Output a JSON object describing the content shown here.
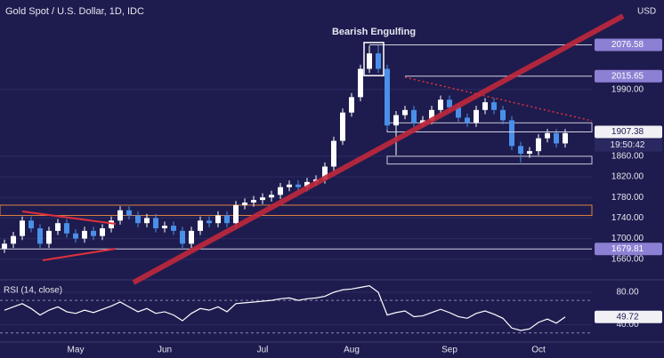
{
  "chart_data": [
    {
      "type": "candlestick",
      "title": "Gold Spot / U.S. Dollar, 1D, IDC",
      "currency": "USD",
      "annotation": "Bearish Engulfing",
      "categories": [
        null,
        null,
        null,
        null,
        null,
        null,
        null,
        null,
        "May",
        null,
        null,
        null,
        null,
        null,
        null,
        null,
        null,
        null,
        "Jun",
        null,
        null,
        null,
        null,
        null,
        null,
        null,
        null,
        null,
        null,
        "Jul",
        null,
        null,
        null,
        null,
        null,
        null,
        null,
        null,
        null,
        "Aug",
        null,
        null,
        null,
        null,
        null,
        null,
        null,
        null,
        null,
        null,
        "Sep",
        null,
        null,
        null,
        null,
        null,
        null,
        null,
        null,
        null,
        "Oct",
        null,
        null,
        null
      ],
      "open": [
        1680,
        1690,
        1705,
        1735,
        1720,
        1690,
        1715,
        1730,
        1710,
        1700,
        1715,
        1705,
        1720,
        1735,
        1755,
        1745,
        1730,
        1740,
        1720,
        1725,
        1715,
        1690,
        1715,
        1735,
        1730,
        1745,
        1730,
        1765,
        1770,
        1775,
        1780,
        1785,
        1800,
        1805,
        1800,
        1810,
        1815,
        1840,
        1890,
        1945,
        1975,
        2030,
        2060,
        2030,
        1920,
        1940,
        1950,
        1925,
        1930,
        1950,
        1970,
        1955,
        1935,
        1925,
        1950,
        1965,
        1950,
        1930,
        1880,
        1865,
        1870,
        1895,
        1905,
        1885
      ],
      "high": [
        1698,
        1713,
        1743,
        1743,
        1728,
        1723,
        1738,
        1738,
        1718,
        1723,
        1723,
        1728,
        1743,
        1763,
        1763,
        1753,
        1748,
        1748,
        1733,
        1733,
        1723,
        1723,
        1743,
        1743,
        1753,
        1753,
        1773,
        1778,
        1783,
        1788,
        1793,
        1808,
        1813,
        1813,
        1818,
        1823,
        1848,
        1898,
        1953,
        1983,
        2038,
        2075,
        2076,
        2038,
        1948,
        1958,
        1958,
        1938,
        1958,
        1978,
        1978,
        1963,
        1943,
        1958,
        1973,
        1973,
        1958,
        1938,
        1888,
        1878,
        1903,
        1913,
        1913,
        1913
      ],
      "low": [
        1672,
        1682,
        1697,
        1712,
        1682,
        1682,
        1707,
        1702,
        1692,
        1692,
        1697,
        1697,
        1712,
        1727,
        1737,
        1722,
        1722,
        1712,
        1712,
        1707,
        1682,
        1682,
        1707,
        1722,
        1722,
        1722,
        1722,
        1757,
        1762,
        1767,
        1772,
        1777,
        1792,
        1792,
        1792,
        1802,
        1807,
        1832,
        1882,
        1937,
        1967,
        2022,
        2022,
        1912,
        1862,
        1932,
        1917,
        1917,
        1922,
        1942,
        1947,
        1927,
        1917,
        1917,
        1942,
        1942,
        1922,
        1872,
        1848,
        1857,
        1862,
        1887,
        1877,
        1877
      ],
      "close": [
        1690,
        1705,
        1735,
        1720,
        1690,
        1715,
        1730,
        1710,
        1700,
        1715,
        1705,
        1720,
        1735,
        1755,
        1745,
        1730,
        1740,
        1720,
        1725,
        1715,
        1690,
        1715,
        1735,
        1730,
        1745,
        1730,
        1765,
        1770,
        1775,
        1780,
        1785,
        1800,
        1805,
        1800,
        1810,
        1815,
        1840,
        1890,
        1945,
        1975,
        2030,
        2060,
        2030,
        1920,
        1940,
        1950,
        1925,
        1930,
        1950,
        1970,
        1955,
        1935,
        1925,
        1950,
        1965,
        1950,
        1930,
        1880,
        1865,
        1870,
        1895,
        1905,
        1885,
        1905
      ],
      "up_color": "#ffffff",
      "down_color": "#4a8fe8",
      "ylim": [
        1625,
        2150
      ],
      "yticks": [
        {
          "value": 1660,
          "label": "1660.00"
        },
        {
          "value": 1700,
          "label": "1700.00"
        },
        {
          "value": 1740,
          "label": "1740.00"
        },
        {
          "value": 1780,
          "label": "1780.00"
        },
        {
          "value": 1820,
          "label": "1820.00"
        },
        {
          "value": 1860,
          "label": "1860.00"
        },
        {
          "value": 1990,
          "label": "1990.00"
        }
      ],
      "levels": [
        2076.58,
        2015.65,
        1907.38,
        1679.81
      ],
      "last_time": "19:50:42",
      "zones": [
        [
          1907.38,
          1925
        ],
        [
          1845,
          1860
        ],
        [
          1745,
          1765
        ]
      ],
      "grid": true
    },
    {
      "type": "line",
      "title": "RSI (14, close)",
      "color": "#ffffff",
      "values": [
        58,
        62,
        66,
        60,
        52,
        58,
        62,
        56,
        54,
        58,
        55,
        59,
        63,
        68,
        62,
        56,
        60,
        54,
        56,
        52,
        45,
        54,
        60,
        58,
        62,
        56,
        66,
        67,
        68,
        69,
        70,
        72,
        73,
        70,
        72,
        73,
        75,
        80,
        83,
        84,
        86,
        88,
        80,
        52,
        55,
        57,
        50,
        51,
        55,
        59,
        55,
        50,
        48,
        54,
        57,
        53,
        48,
        36,
        33,
        35,
        43,
        47,
        42,
        49.72
      ],
      "ylim": [
        21,
        92
      ],
      "yticks": [
        {
          "value": 40,
          "label": "40.00"
        },
        {
          "value": 80,
          "label": "80.00"
        }
      ],
      "guide_lines": [
        30,
        70
      ]
    }
  ]
}
